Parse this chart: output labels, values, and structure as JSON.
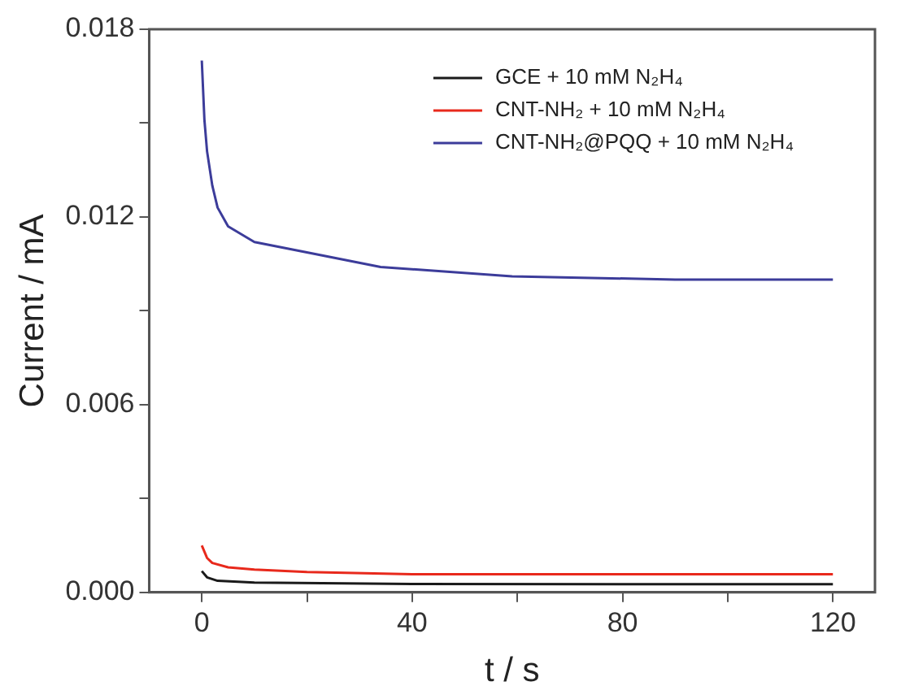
{
  "chart_data": {
    "type": "line",
    "xlabel": "t / s",
    "ylabel": "Current / mA",
    "xlim": [
      -10,
      128
    ],
    "ylim": [
      0,
      0.018
    ],
    "xticks": [
      0,
      {
        "value": 20,
        "label": null
      },
      40,
      {
        "value": 60,
        "label": null
      },
      80,
      {
        "value": 100,
        "label": null
      },
      120
    ],
    "yticks": [
      "0.000",
      {
        "value": 0.003,
        "label": null
      },
      {
        "value": 0.006,
        "label": "0.006"
      },
      {
        "value": 0.009,
        "label": null
      },
      {
        "value": 0.012,
        "label": "0.012"
      },
      {
        "value": 0.015,
        "label": null
      },
      {
        "value": 0.018,
        "label": "0.018"
      }
    ],
    "legend": "top right",
    "grid": false,
    "marker": "none",
    "line_style": "solid",
    "series": [
      {
        "name": "GCE + 10 mM N₂H₄",
        "color": "#1a1a1a",
        "x": [
          0,
          1,
          3,
          10,
          40,
          80,
          120
        ],
        "values": [
          0.00068,
          0.00048,
          0.00037,
          0.00031,
          0.00027,
          0.00026,
          0.00026
        ]
      },
      {
        "name": "CNT-NH₂ + 10 mM N₂H₄",
        "color": "#e8291c",
        "x": [
          0,
          1,
          2,
          5,
          10,
          20,
          40,
          80,
          120
        ],
        "values": [
          0.0015,
          0.0011,
          0.00094,
          0.0008,
          0.00073,
          0.00065,
          0.00058,
          0.00058,
          0.00058
        ]
      },
      {
        "name": "CNT-NH₂@PQQ + 10 mM N₂H₄",
        "color": "#3c3c9a",
        "x": [
          0,
          0.5,
          1,
          2,
          3,
          5,
          10,
          19,
          34,
          59,
          90,
          120
        ],
        "values": [
          0.017,
          0.0151,
          0.0141,
          0.013,
          0.0123,
          0.0117,
          0.0112,
          0.0109,
          0.0104,
          0.0101,
          0.01,
          0.01
        ]
      }
    ]
  }
}
